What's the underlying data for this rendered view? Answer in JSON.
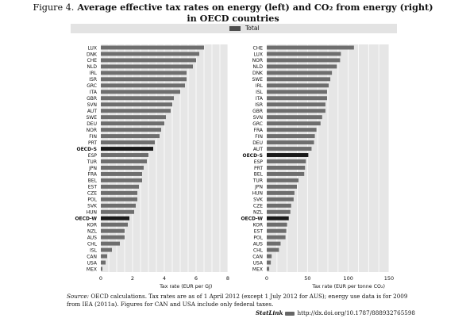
{
  "figure": {
    "label": "Figure 4.",
    "title_line1": "Average effective tax rates on energy (left) and CO₂ from energy (right)",
    "title_line2": "in OECD countries"
  },
  "legend": {
    "label": "Total",
    "color": "#4d4d4d"
  },
  "colors": {
    "bar": "#6e6e6e",
    "highlight": "#1a1a1a",
    "plot_bg": "#e6e6e6",
    "grid": "#ffffff"
  },
  "chart_data": [
    {
      "type": "bar",
      "orientation": "horizontal",
      "xlabel": "Tax rate (EUR per GJ)",
      "xlim": [
        0,
        8
      ],
      "xticks": [
        0,
        2,
        4,
        6,
        8
      ],
      "grid": true,
      "series": [
        {
          "name": "Total"
        }
      ],
      "highlight": [
        "OECD-S",
        "OECD-W"
      ],
      "categories": [
        "LUX",
        "DNK",
        "CHE",
        "NLD",
        "IRL",
        "ISR",
        "GRC",
        "ITA",
        "GBR",
        "SVN",
        "AUT",
        "SWE",
        "DEU",
        "NOR",
        "FIN",
        "PRT",
        "OECD-S",
        "ESP",
        "TUR",
        "JPN",
        "FRA",
        "BEL",
        "EST",
        "CZE",
        "POL",
        "SVK",
        "HUN",
        "OECD-W",
        "KOR",
        "NZL",
        "AUS",
        "CHL",
        "ISL",
        "CAN",
        "USA",
        "MEX"
      ],
      "values": [
        6.5,
        6.2,
        6.0,
        5.8,
        5.4,
        5.4,
        5.3,
        5.0,
        4.6,
        4.5,
        4.4,
        4.1,
        4.0,
        3.8,
        3.7,
        3.4,
        3.3,
        3.0,
        2.9,
        2.7,
        2.6,
        2.6,
        2.4,
        2.3,
        2.3,
        2.2,
        2.1,
        1.8,
        1.7,
        1.5,
        1.5,
        1.2,
        0.7,
        0.4,
        0.3,
        0.1
      ]
    },
    {
      "type": "bar",
      "orientation": "horizontal",
      "xlabel": "Tax rate (EUR per tonne CO₂)",
      "xlim": [
        0,
        150
      ],
      "xticks": [
        0,
        50,
        100,
        150
      ],
      "grid": true,
      "series": [
        {
          "name": "Total"
        }
      ],
      "highlight": [
        "OECD-S",
        "OECD-W"
      ],
      "categories": [
        "CHE",
        "LUX",
        "NOR",
        "NLD",
        "DNK",
        "SWE",
        "IRL",
        "ISL",
        "ITA",
        "ISR",
        "GBR",
        "SVN",
        "GRC",
        "FRA",
        "FIN",
        "DEU",
        "AUT",
        "OECD-S",
        "ESP",
        "PRT",
        "BEL",
        "TUR",
        "JPN",
        "HUN",
        "SVK",
        "CZE",
        "NZL",
        "OECD-W",
        "KOR",
        "EST",
        "POL",
        "AUS",
        "CHL",
        "CAN",
        "USA",
        "MEX"
      ],
      "values": [
        107,
        91,
        90,
        86,
        80,
        78,
        76,
        74,
        74,
        72,
        72,
        68,
        66,
        61,
        59,
        58,
        55,
        51,
        48,
        47,
        46,
        39,
        37,
        34,
        33,
        30,
        29,
        27,
        25,
        24,
        23,
        17,
        15,
        6,
        5,
        3
      ]
    }
  ],
  "source_note": {
    "label": "Source:",
    "text": "OECD calculations. Tax rates are as of 1 April 2012 (except 1 July 2012 for AUS); energy use data is for 2009 from IEA (2011a). Figures for CAN and USA include only federal taxes."
  },
  "doi": {
    "brand": "StatLink",
    "url": "http://dx.doi.org/10.1787/888932765598"
  }
}
